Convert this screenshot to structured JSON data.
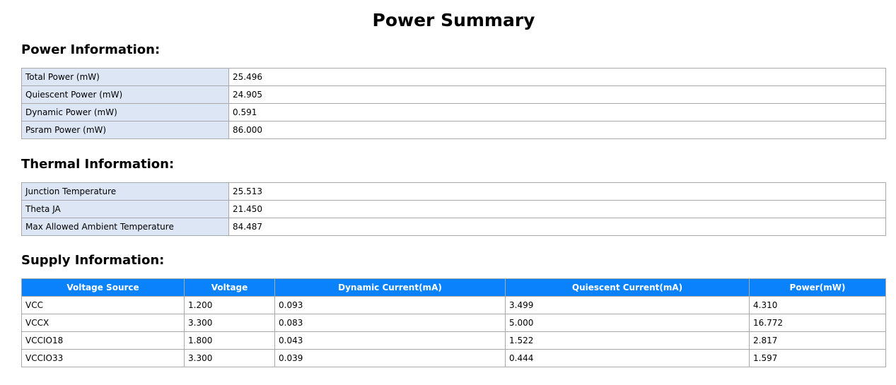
{
  "title": "Power Summary",
  "power_section": {
    "heading": "Power Information:",
    "rows": [
      {
        "label": "Total Power (mW)",
        "value": "25.496"
      },
      {
        "label": "Quiescent Power (mW)",
        "value": "24.905"
      },
      {
        "label": "Dynamic Power (mW)",
        "value": "0.591"
      },
      {
        "label": "Psram Power (mW)",
        "value": "86.000"
      }
    ]
  },
  "thermal_section": {
    "heading": "Thermal Information:",
    "rows": [
      {
        "label": "Junction Temperature",
        "value": "25.513"
      },
      {
        "label": "Theta JA",
        "value": "21.450"
      },
      {
        "label": "Max Allowed Ambient Temperature",
        "value": "84.487"
      }
    ]
  },
  "supply_section": {
    "heading": "Supply Information:",
    "columns": [
      "Voltage Source",
      "Voltage",
      "Dynamic Current(mA)",
      "Quiescent Current(mA)",
      "Power(mW)"
    ],
    "rows": [
      [
        "VCC",
        "1.200",
        "0.093",
        "3.499",
        "4.310"
      ],
      [
        "VCCX",
        "3.300",
        "0.083",
        "5.000",
        "16.772"
      ],
      [
        "VCCIO18",
        "1.800",
        "0.043",
        "1.522",
        "2.817"
      ],
      [
        "VCCIO33",
        "3.300",
        "0.039",
        "0.444",
        "1.597"
      ]
    ]
  },
  "colors": {
    "header_bg": "#0a82fc",
    "label_cell_bg": "#dce6f4",
    "border": "#a9a9a9"
  }
}
